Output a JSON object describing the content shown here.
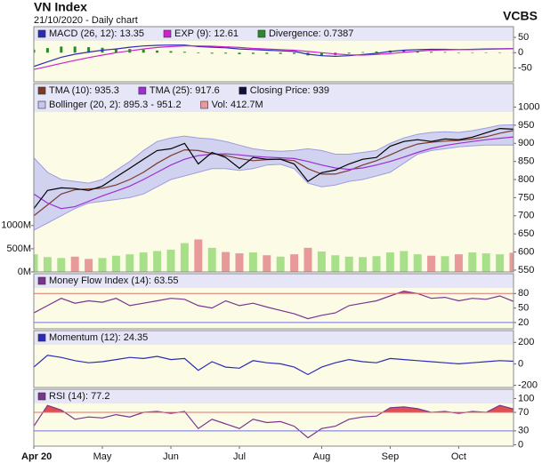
{
  "header": {
    "title": "VN Index",
    "subtitle": "21/10/2020 - Daily chart",
    "brand": "VCBS"
  },
  "chart_data": [
    {
      "type": "line",
      "ylim": [
        -95,
        85
      ],
      "yticks": [
        50,
        0,
        -50
      ],
      "series": [
        {
          "name": "MACD (26, 12): 13.35",
          "type": "line",
          "color": "#2b2bb8",
          "values": [
            -45,
            -30,
            -15,
            -5,
            2,
            8,
            12,
            18,
            22,
            24,
            25,
            25,
            20,
            18,
            16,
            12,
            10,
            8,
            6,
            4,
            -5,
            -10,
            -12,
            -10,
            -6,
            -2,
            4,
            8,
            10,
            11,
            11,
            10,
            11,
            12,
            13,
            13.35
          ]
        },
        {
          "name": "EXP (9): 12.61",
          "type": "line",
          "color": "#cc22cc",
          "values": [
            -55,
            -45,
            -35,
            -25,
            -16,
            -8,
            0,
            6,
            12,
            17,
            20,
            22,
            22,
            21,
            19,
            17,
            14,
            12,
            10,
            8,
            4,
            0,
            -4,
            -7,
            -8,
            -6,
            -3,
            1,
            5,
            8,
            9,
            10,
            10,
            11,
            12,
            12.61
          ]
        },
        {
          "name": "Divergence: 0.7387",
          "type": "bar",
          "color": "#2a8a2a",
          "values": [
            10,
            15,
            20,
            20,
            18,
            16,
            12,
            12,
            10,
            7,
            5,
            3,
            -2,
            -3,
            -3,
            -5,
            -4,
            -4,
            -4,
            -4,
            -9,
            -10,
            -8,
            -3,
            2,
            4,
            7,
            7,
            5,
            3,
            2,
            0,
            1,
            1,
            1,
            0.7387
          ]
        }
      ]
    },
    {
      "type": "line",
      "ylim": [
        545,
        1065
      ],
      "yticks": [
        550,
        600,
        650,
        700,
        750,
        800,
        850,
        900,
        950,
        1000
      ],
      "y2lim": [
        0,
        4060
      ],
      "y2ticks": [
        {
          "value": 0,
          "label": "0M"
        },
        {
          "value": 500,
          "label": "500M"
        },
        {
          "value": 1000,
          "label": "1000M"
        }
      ],
      "y2_side": "left",
      "series": [
        {
          "name": "TMA (10): 935.3",
          "type": "line",
          "color": "#7a3b2b",
          "values": [
            700,
            730,
            760,
            772,
            774,
            776,
            785,
            800,
            820,
            845,
            866,
            882,
            880,
            872,
            866,
            858,
            852,
            855,
            856,
            852,
            830,
            815,
            815,
            825,
            840,
            852,
            868,
            885,
            898,
            903,
            906,
            908,
            912,
            918,
            928,
            935.3
          ]
        },
        {
          "name": "TMA (25): 917.6",
          "type": "line",
          "color": "#9b30d0",
          "values": [
            760,
            735,
            720,
            725,
            740,
            755,
            768,
            782,
            800,
            820,
            840,
            856,
            866,
            870,
            871,
            868,
            864,
            862,
            860,
            858,
            850,
            840,
            832,
            828,
            832,
            840,
            850,
            862,
            875,
            886,
            894,
            900,
            905,
            910,
            914,
            917.6
          ]
        },
        {
          "name": "Closing Price: 939",
          "type": "line",
          "color": "#000000",
          "values": [
            720,
            770,
            777,
            775,
            770,
            782,
            807,
            831,
            856,
            880,
            885,
            900,
            843,
            875,
            861,
            831,
            861,
            856,
            856,
            843,
            795,
            819,
            826,
            843,
            856,
            861,
            892,
            905,
            910,
            905,
            912,
            910,
            917,
            929,
            941,
            939
          ]
        },
        {
          "name": "Bollinger (20, 2): 895.3 - 951.2",
          "type": "band",
          "color": "#c6c6f2",
          "stroke": "#9d9de0",
          "upper": [
            860,
            820,
            800,
            795,
            790,
            800,
            825,
            850,
            880,
            905,
            915,
            920,
            915,
            912,
            905,
            895,
            885,
            880,
            878,
            880,
            885,
            880,
            870,
            870,
            875,
            880,
            900,
            915,
            925,
            930,
            932,
            930,
            935,
            942,
            950,
            951.2
          ],
          "lower": [
            660,
            680,
            700,
            720,
            735,
            740,
            745,
            750,
            760,
            780,
            800,
            810,
            820,
            830,
            830,
            825,
            830,
            840,
            842,
            830,
            790,
            780,
            785,
            795,
            800,
            810,
            820,
            845,
            870,
            880,
            885,
            890,
            893,
            895,
            895,
            895.3
          ]
        },
        {
          "name": "Vol: 412.7M",
          "type": "bar",
          "axis": "y2",
          "color": "#e89a9a",
          "colors": [
            "#a8e08a",
            "#a8e08a",
            "#a8e08a",
            "#e89a9a",
            "#e89a9a",
            "#a8e08a",
            "#a8e08a",
            "#a8e08a",
            "#a8e08a",
            "#a8e08a",
            "#a8e08a",
            "#a8e08a",
            "#e89a9a",
            "#a8e08a",
            "#e89a9a",
            "#e89a9a",
            "#a8e08a",
            "#e89a9a",
            "#a8e08a",
            "#e89a9a",
            "#e89a9a",
            "#a8e08a",
            "#a8e08a",
            "#a8e08a",
            "#a8e08a",
            "#a8e08a",
            "#a8e08a",
            "#a8e08a",
            "#a8e08a",
            "#e89a9a",
            "#a8e08a",
            "#e89a9a",
            "#a8e08a",
            "#a8e08a",
            "#a8e08a",
            "#e89a9a"
          ],
          "values": [
            380,
            320,
            300,
            330,
            280,
            300,
            350,
            380,
            420,
            450,
            480,
            620,
            700,
            520,
            430,
            400,
            420,
            360,
            330,
            380,
            520,
            440,
            360,
            330,
            320,
            340,
            420,
            450,
            380,
            350,
            340,
            380,
            420,
            400,
            380,
            412.7
          ]
        }
      ]
    },
    {
      "type": "line",
      "ylim": [
        7,
        121
      ],
      "yticks": [
        80,
        50,
        20
      ],
      "ref_lines": [
        {
          "value": 80,
          "color": "#e07070"
        },
        {
          "value": 20,
          "color": "#7070e0"
        }
      ],
      "series": [
        {
          "name": "Money Flow Index (14): 63.55",
          "type": "line",
          "color": "#7a3490",
          "fill_above": {
            "value": 80,
            "color": "#e05050"
          },
          "values": [
            40,
            55,
            70,
            60,
            65,
            62,
            70,
            55,
            60,
            65,
            70,
            68,
            55,
            50,
            65,
            55,
            60,
            52,
            45,
            38,
            28,
            35,
            40,
            55,
            60,
            65,
            75,
            85,
            80,
            70,
            72,
            65,
            70,
            68,
            75,
            63.55
          ]
        }
      ]
    },
    {
      "type": "line",
      "ylim": [
        -220,
        310
      ],
      "yticks": [
        200,
        0,
        -200
      ],
      "series": [
        {
          "name": "Momentum (12): 24.35",
          "type": "line",
          "color": "#2b2bb8",
          "values": [
            -30,
            80,
            60,
            30,
            10,
            20,
            40,
            60,
            50,
            70,
            40,
            50,
            -60,
            20,
            -30,
            -40,
            30,
            10,
            0,
            -30,
            -100,
            -30,
            10,
            40,
            20,
            10,
            50,
            40,
            30,
            20,
            10,
            0,
            10,
            20,
            30,
            24.35
          ]
        }
      ]
    },
    {
      "type": "line",
      "ylim": [
        -3,
        120
      ],
      "yticks": [
        100,
        70,
        30,
        0
      ],
      "ref_lines": [
        {
          "value": 70,
          "color": "#e07070"
        },
        {
          "value": 30,
          "color": "#7070e0"
        }
      ],
      "categories": [
        "Apr 20",
        null,
        null,
        null,
        null,
        "May",
        null,
        null,
        null,
        null,
        "Jun",
        null,
        null,
        null,
        null,
        "Jul",
        null,
        null,
        null,
        null,
        null,
        "Aug",
        null,
        null,
        null,
        null,
        "Sep",
        null,
        null,
        null,
        null,
        "Oct",
        null,
        null,
        null,
        null
      ],
      "series": [
        {
          "name": "RSI (14): 77.2",
          "type": "line",
          "color": "#7a3490",
          "fill_above": {
            "value": 70,
            "color": "#e05050"
          },
          "values": [
            40,
            85,
            75,
            55,
            60,
            58,
            65,
            60,
            70,
            72,
            68,
            72,
            35,
            55,
            45,
            35,
            55,
            48,
            50,
            40,
            15,
            35,
            40,
            55,
            60,
            62,
            80,
            82,
            78,
            70,
            72,
            68,
            72,
            70,
            85,
            77.2
          ]
        }
      ]
    }
  ]
}
